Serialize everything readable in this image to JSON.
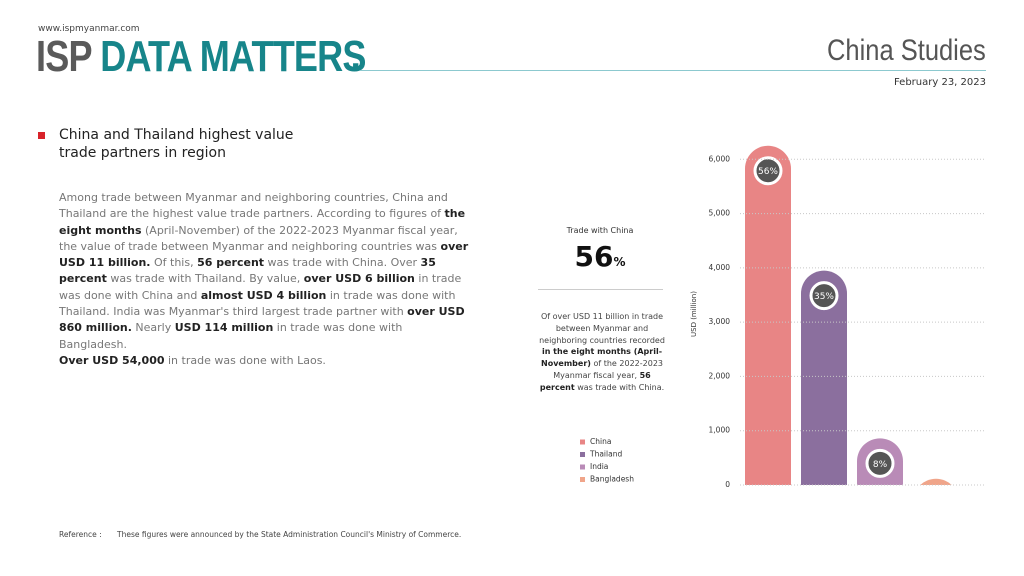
{
  "header": {
    "website": "www.ispmyanmar.com",
    "brand": "ISP",
    "title": "DATA MATTERS",
    "dot": ".",
    "series_name": "China Studies",
    "date": "February 23, 2023"
  },
  "article": {
    "headline": "China and Thailand highest value trade partners in region",
    "body": [
      {
        "text": "Among trade between Myanmar and neighboring countries, China and Thailand are the highest value trade partners. According to figures of "
      },
      {
        "text": "the eight months",
        "bold": true
      },
      {
        "text": " (April-November) of the 2022-2023 Myanmar fiscal year, the value of trade between Myanmar and neighboring countries was "
      },
      {
        "text": "over USD 11 billion.",
        "bold": true
      },
      {
        "text": " Of this, "
      },
      {
        "text": "56 percent",
        "bold": true
      },
      {
        "text": " was trade with China. Over "
      },
      {
        "text": "35 percent",
        "bold": true
      },
      {
        "text": " was trade with Thailand. By value, "
      },
      {
        "text": "over USD 6 billion",
        "bold": true
      },
      {
        "text": " in trade was done with China and "
      },
      {
        "text": "almost USD 4 billion",
        "bold": true
      },
      {
        "text": " in trade was done with Thailand. India was Myanmar's third largest trade partner with "
      },
      {
        "text": "over USD 860 million.",
        "bold": true
      },
      {
        "text": " Nearly "
      },
      {
        "text": "USD 114 million",
        "bold": true
      },
      {
        "text": " in trade was done with Bangladesh."
      },
      {
        "text": "Over USD 54,000",
        "bold": true,
        "break": true
      },
      {
        "text": " in trade was done with Laos."
      }
    ]
  },
  "highlight": {
    "label": "Trade with China",
    "value": "56",
    "unit": "%",
    "note": [
      {
        "text": "Of over USD 11 billion in trade between Myanmar and neighboring countries recorded "
      },
      {
        "text": "in the eight months (April-November)",
        "bold": true
      },
      {
        "text": " of the 2022-2023 Myanmar fiscal year, "
      },
      {
        "text": "56 percent",
        "bold": true
      },
      {
        "text": " was trade with China."
      }
    ]
  },
  "chart_data": {
    "type": "bar",
    "y_label": "USD (million)",
    "categories": [
      "China",
      "Thailand",
      "India",
      "Bangladesh"
    ],
    "values": [
      6250,
      3950,
      860,
      114
    ],
    "colors": [
      "#e88585",
      "#8b6f9e",
      "#b98bb7",
      "#f0a58a"
    ],
    "share_labels": [
      "56%",
      "35%",
      "8%",
      null
    ],
    "ylim": [
      0,
      6300
    ],
    "yticks": [
      0,
      {
        "value": 1000,
        "label": "1,000"
      },
      {
        "value": 2000,
        "label": "2,000"
      },
      {
        "value": 3000,
        "label": "3,000"
      },
      {
        "value": 4000,
        "label": "4,000"
      },
      {
        "value": 5000,
        "label": "5,000"
      },
      {
        "value": 6000,
        "label": "6,000"
      }
    ],
    "grid": true,
    "legend": "left"
  },
  "footer": {
    "label": "Reference :",
    "text": "These figures were announced by the State Administration Council's Ministry of Commerce."
  }
}
